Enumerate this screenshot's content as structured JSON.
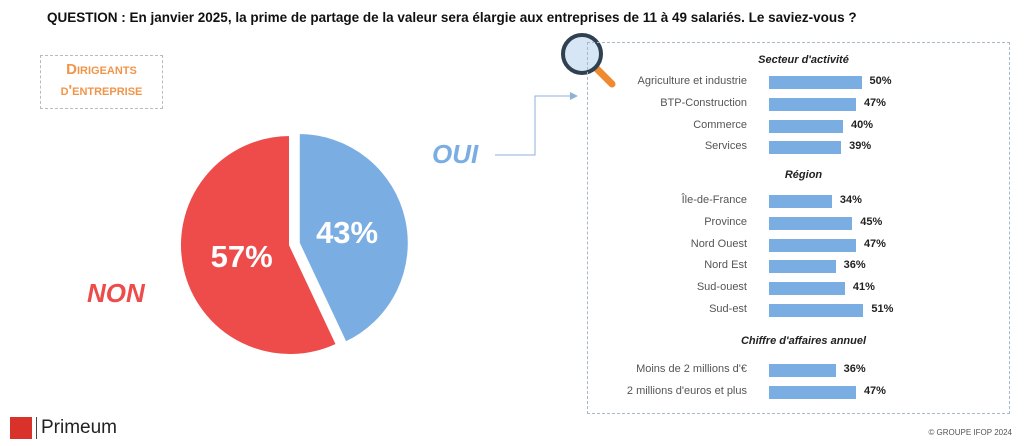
{
  "question": "QUESTION : En janvier 2025, la prime de partage de la valeur sera élargie aux entreprises de 11 à 49 salariés. Le saviez-vous ?",
  "audience_line1": "Dirigeants",
  "audience_line2": "d'entreprise",
  "colors": {
    "oui": "#7aaee3",
    "non": "#ee4b4b",
    "audience": "#f0954a"
  },
  "chart_data": [
    {
      "type": "pie",
      "slices": [
        {
          "name": "OUI",
          "value": 43,
          "label": "43%"
        },
        {
          "name": "NON",
          "value": 57,
          "label": "57%"
        }
      ]
    },
    {
      "type": "bar",
      "orientation": "horizontal",
      "groups": [
        {
          "title": "Secteur d'activité",
          "categories": [
            "Agriculture et industrie",
            "BTP-Construction",
            "Commerce",
            "Services"
          ],
          "values": [
            50,
            47,
            40,
            39
          ]
        },
        {
          "title": "Région",
          "categories": [
            "Île-de-France",
            "Province",
            "Nord Ouest",
            "Nord Est",
            "Sud-ouest",
            "Sud-est"
          ],
          "values": [
            34,
            45,
            47,
            36,
            41,
            51
          ]
        },
        {
          "title": "Chiffre d'affaires annuel",
          "categories": [
            "Moins de 2 millions d'€",
            "2 millions d'euros et plus"
          ],
          "values": [
            36,
            47
          ]
        }
      ]
    }
  ],
  "icons": {
    "panel": "magnifier-icon"
  },
  "footer": {
    "brand": "Primeum",
    "copyright": "© GROUPE IFOP 2024"
  }
}
